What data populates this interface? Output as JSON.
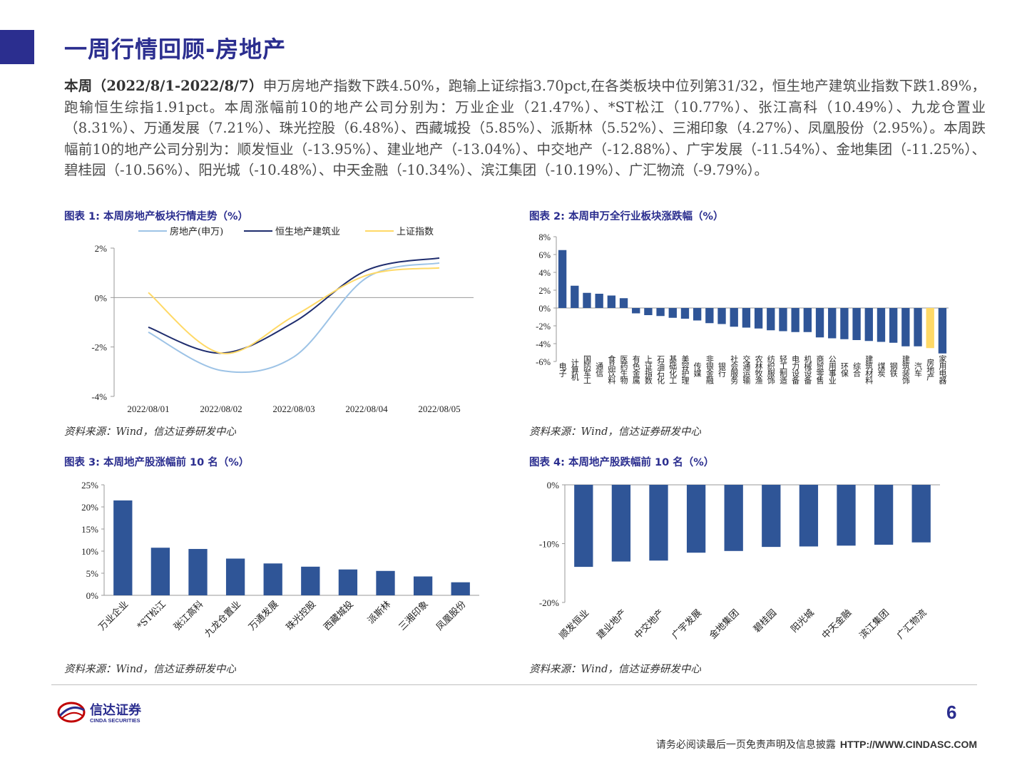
{
  "title": "一周行情回顾-房地产",
  "summary": {
    "lead": "本周（2022/8/1-2022/8/7）",
    "text": "申万房地产指数下跌4.50%，跑输上证综指3.70pct,在各类板块中位列第31/32，恒生地产建筑业指数下跌1.89%，跑输恒生综指1.91pct。本周涨幅前10的地产公司分别为：万业企业（21.47%）、*ST松江（10.77%）、张江高科（10.49%）、九龙仓置业（8.31%）、万通发展（7.21%）、珠光控股（6.48%）、西藏城投（5.85%）、派斯林（5.52%）、三湘印象（4.27%）、凤凰股份（2.95%）。本周跌幅前10的地产公司分别为：顺发恒业（-13.95%）、建业地产（-13.04%）、中交地产（-12.88%）、广宇发展（-11.54%）、金地集团（-11.25%）、碧桂园（-10.56%）、阳光城（-10.48%）、中天金融（-10.34%）、滨江集团（-10.19%）、广汇物流（-9.79%）。"
  },
  "figures": {
    "fig1": {
      "label": "图表 1:   本周房地产板块行情走势（%）",
      "source": "资料来源：Wind，信达证券研发中心"
    },
    "fig2": {
      "label": "图表 2:  本周申万全行业板块涨跌幅（%）",
      "source": "资料来源：Wind，信达证券研发中心"
    },
    "fig3": {
      "label": "图表 3:  本周地产股涨幅前 10 名（%）",
      "source": "资料来源：Wind，信达证券研发中心"
    },
    "fig4": {
      "label": "图表 4:  本周地产股跌幅前 10 名（%）",
      "source": "资料来源：Wind，信达证券研发中心"
    }
  },
  "chart_data": [
    {
      "id": "fig1",
      "type": "line",
      "x": [
        "2022/08/01",
        "2022/08/02",
        "2022/08/03",
        "2022/08/04",
        "2022/08/05"
      ],
      "ylim": [
        -4,
        2
      ],
      "yticks": [
        "2%",
        "0%",
        "-2%",
        "-4%"
      ],
      "legend_position": "top",
      "series": [
        {
          "name": "房地产(申万)",
          "color": "#9dc3e6",
          "values": [
            -1.4,
            -2.95,
            -2.4,
            0.8,
            1.4
          ]
        },
        {
          "name": "恒生地产建筑业",
          "color": "#1f2d6e",
          "values": [
            -1.2,
            -2.25,
            -1.0,
            1.1,
            1.6
          ]
        },
        {
          "name": "上证指数",
          "color": "#ffd966",
          "values": [
            0.2,
            -2.25,
            -0.75,
            0.9,
            1.2
          ]
        }
      ]
    },
    {
      "id": "fig2",
      "type": "bar",
      "ylim": [
        -6,
        8
      ],
      "yticks": [
        "8%",
        "6%",
        "4%",
        "2%",
        "0%",
        "-2%",
        "-4%",
        "-6%"
      ],
      "bar_color": "#2f5597",
      "highlight_color": "#ffd966",
      "highlight_category": "房地产",
      "categories": [
        "电子",
        "计算机",
        "国防军工",
        "通信",
        "食品饮料",
        "医药生物",
        "有色金属",
        "上证指数",
        "石油石化",
        "基础化工",
        "美容护理",
        "传媒",
        "非银金融",
        "银行",
        "社会服务",
        "交通运输",
        "农林牧渔",
        "纺织服饰",
        "轻工制造",
        "电力设备",
        "机械设备",
        "商贸零售",
        "公用事业",
        "环保",
        "综合",
        "建筑材料",
        "煤炭",
        "钢铁",
        "建筑装饰",
        "汽车",
        "房地产",
        "家用电器"
      ],
      "values": [
        6.5,
        2.5,
        1.7,
        1.6,
        1.4,
        1.1,
        -0.6,
        -0.8,
        -0.9,
        -1.1,
        -1.2,
        -1.4,
        -1.7,
        -1.8,
        -2.1,
        -2.2,
        -2.3,
        -2.5,
        -2.6,
        -2.7,
        -2.7,
        -3.3,
        -3.4,
        -3.5,
        -3.6,
        -3.7,
        -3.8,
        -3.9,
        -4.3,
        -4.3,
        -4.5,
        -5.1
      ]
    },
    {
      "id": "fig3",
      "type": "bar",
      "ylim": [
        0,
        25
      ],
      "yticks": [
        "25%",
        "20%",
        "15%",
        "10%",
        "5%",
        "0%"
      ],
      "bar_color": "#2f5597",
      "categories": [
        "万业企业",
        "*ST松江",
        "张江高科",
        "九龙仓置业",
        "万通发展",
        "珠光控股",
        "西藏城投",
        "派斯林",
        "三湘印象",
        "凤凰股份"
      ],
      "values": [
        21.47,
        10.77,
        10.49,
        8.31,
        7.21,
        6.48,
        5.85,
        5.52,
        4.27,
        2.95
      ]
    },
    {
      "id": "fig4",
      "type": "bar",
      "ylim": [
        -20,
        0
      ],
      "yticks": [
        "0%",
        "-10%",
        "-20%"
      ],
      "bar_color": "#2f5597",
      "categories": [
        "顺发恒业",
        "建业地产",
        "中交地产",
        "广宇发展",
        "金地集团",
        "碧桂园",
        "阳光城",
        "中天金融",
        "滨江集团",
        "广汇物流"
      ],
      "values": [
        -13.95,
        -13.04,
        -12.88,
        -11.54,
        -11.25,
        -10.56,
        -10.48,
        -10.34,
        -10.19,
        -9.79
      ]
    }
  ],
  "footer": {
    "logo_cn": "信达证券",
    "logo_en": "CINDA SECURITIES",
    "page": "6",
    "disclaimer": "请务必阅读最后一页免责声明及信息披露",
    "url": "HTTP://WWW.CINDASC.COM"
  }
}
